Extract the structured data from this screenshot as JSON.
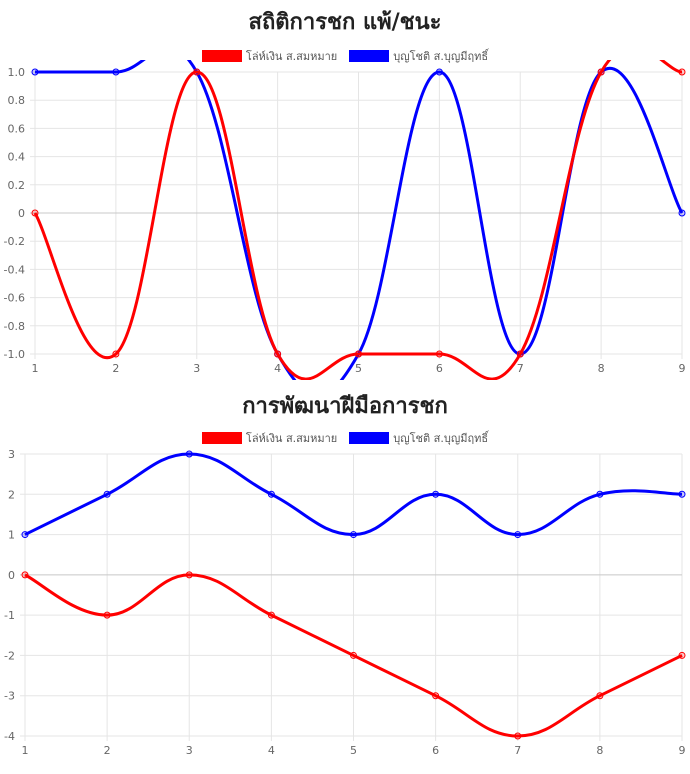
{
  "colors": {
    "red": "#ff0000",
    "blue": "#0000ff",
    "grid": "#e5e5e5",
    "zero": "#c8c8c8"
  },
  "charts": [
    {
      "title": "สถิติการชก แพ้/ชนะ",
      "legend": [
        "โล่ห์เงิน ส.สมหมาย",
        "บุญโชติ ส.บุญมีฤทธิ์"
      ]
    },
    {
      "title": "การพัฒนาฝีมือการชก",
      "legend": [
        "โล่ห์เงิน ส.สมหมาย",
        "บุญโชติ ส.บุญมีฤทธิ์"
      ]
    }
  ],
  "chart_data": [
    {
      "type": "line",
      "title": "สถิติการชก แพ้/ชนะ",
      "x": [
        1,
        2,
        3,
        4,
        5,
        6,
        7,
        8,
        9
      ],
      "ylim": [
        -1.0,
        1.0
      ],
      "yticks": [
        "1.0",
        "0.8",
        "0.6",
        "0.4",
        "0.2",
        "0",
        "-0.2",
        "-0.4",
        "-0.6",
        "-0.8",
        "-1.0"
      ],
      "series": [
        {
          "name": "โล่ห์เงิน ส.สมหมาย",
          "color": "#ff0000",
          "values": [
            0,
            -1,
            1,
            -1,
            -1,
            -1,
            -1,
            1,
            1
          ]
        },
        {
          "name": "บุญโชติ ส.บุญมีฤทธิ์",
          "color": "#0000ff",
          "values": [
            1,
            1,
            1,
            -1,
            -1,
            1,
            -1,
            1,
            0
          ]
        }
      ],
      "grid": true,
      "legend_position": "top"
    },
    {
      "type": "line",
      "title": "การพัฒนาฝีมือการชก",
      "x": [
        1,
        2,
        3,
        4,
        5,
        6,
        7,
        8,
        9
      ],
      "ylim": [
        -4,
        3
      ],
      "yticks": [
        "3",
        "2",
        "1",
        "0",
        "-1",
        "-2",
        "-3",
        "-4"
      ],
      "series": [
        {
          "name": "โล่ห์เงิน ส.สมหมาย",
          "color": "#ff0000",
          "values": [
            0,
            -1,
            0,
            -1,
            -2,
            -3,
            -4,
            -3,
            -2
          ]
        },
        {
          "name": "บุญโชติ ส.บุญมีฤทธิ์",
          "color": "#0000ff",
          "values": [
            1,
            2,
            3,
            2,
            1,
            2,
            1,
            2,
            2
          ]
        }
      ],
      "grid": true,
      "legend_position": "top"
    }
  ]
}
